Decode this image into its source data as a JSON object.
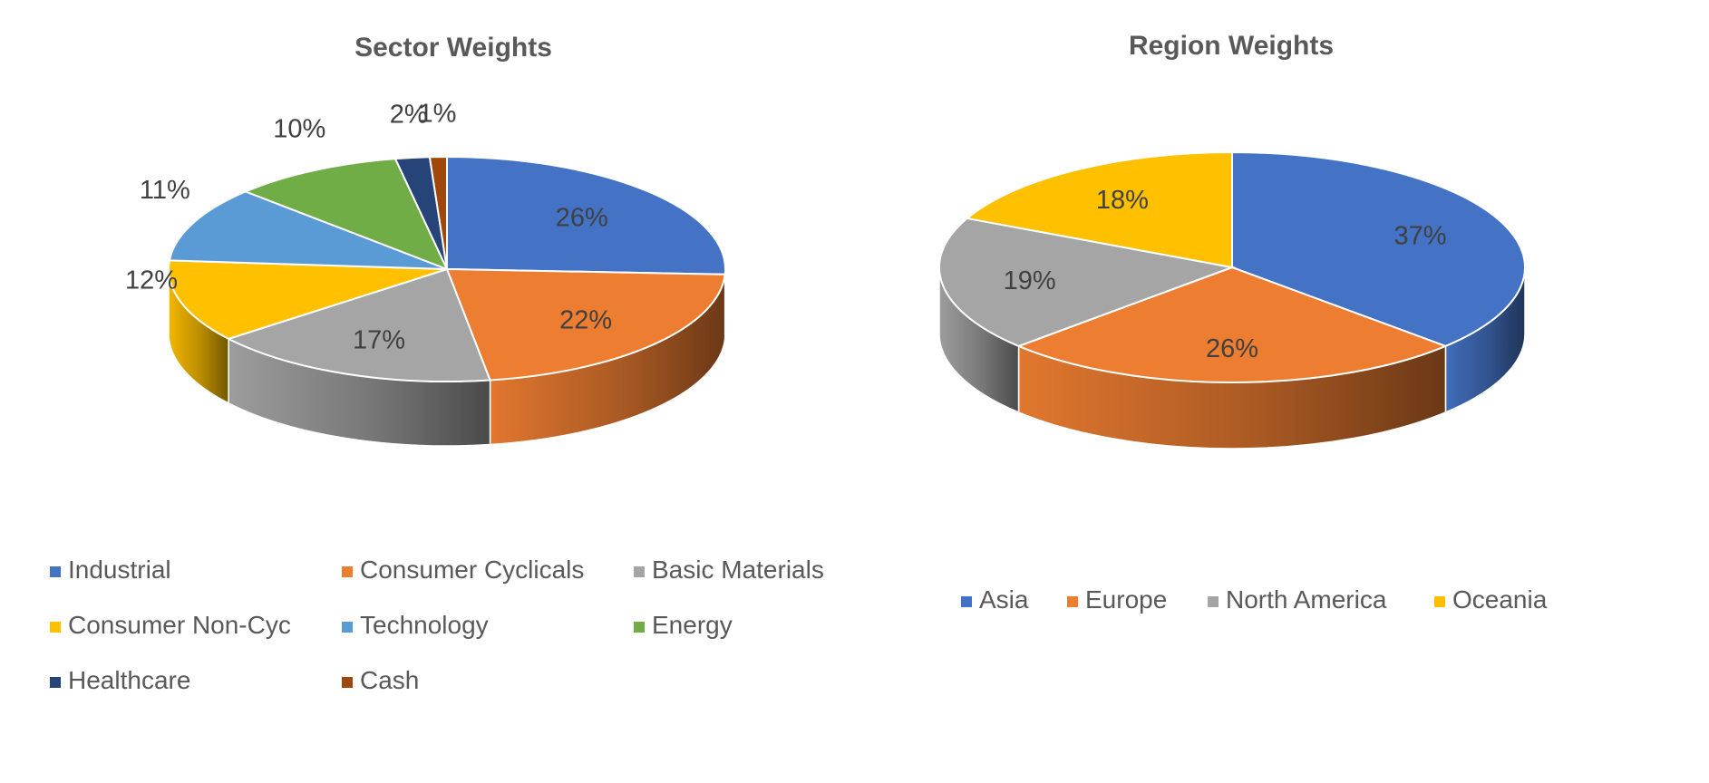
{
  "chart_data": [
    {
      "type": "pie",
      "title": "Sector Weights",
      "categories": [
        "Industrial",
        "Consumer Cyclicals",
        "Basic Materials",
        "Consumer Non-Cyc",
        "Technology",
        "Energy",
        "Healthcare",
        "Cash"
      ],
      "values": [
        26,
        22,
        17,
        12,
        11,
        10,
        2,
        1
      ],
      "labels": [
        "26%",
        "22%",
        "17%",
        "12%",
        "11%",
        "10%",
        "2%",
        "1%"
      ],
      "colors": [
        "#4472C4",
        "#ED7D31",
        "#A5A5A5",
        "#FFC000",
        "#5B9BD5",
        "#70AD47",
        "#264478",
        "#9E480E"
      ],
      "legend": "bottom",
      "style": "3d"
    },
    {
      "type": "pie",
      "title": "Region Weights",
      "categories": [
        "Asia",
        "Europe",
        "North America",
        "Oceania"
      ],
      "values": [
        37,
        26,
        19,
        18
      ],
      "labels": [
        "37%",
        "26%",
        "19%",
        "18%"
      ],
      "colors": [
        "#4472C4",
        "#ED7D31",
        "#A5A5A5",
        "#FFC000"
      ],
      "legend": "bottom",
      "style": "3d"
    }
  ]
}
